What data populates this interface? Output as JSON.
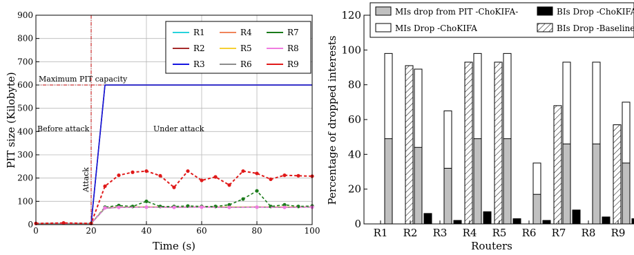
{
  "chart_data": [
    {
      "type": "line",
      "xlabel": "Time (s)",
      "ylabel": "PIT size (Kilobyte)",
      "xlim": [
        0,
        100
      ],
      "ylim": [
        0,
        900
      ],
      "x_ticks": [
        "0",
        "20",
        "40",
        "60",
        "80",
        "100"
      ],
      "y_ticks": [
        "0",
        "100",
        "200",
        "300",
        "400",
        "500",
        "600",
        "700",
        "800",
        "900"
      ],
      "legend_position": "top-right",
      "annotations": {
        "max_pit": "Maximum PIT capacity",
        "before": "Before attack",
        "under": "Under attack",
        "attack": "Attack"
      },
      "reference_lines": {
        "attack_time": 20,
        "max_pit_capacity": 600
      },
      "series": [
        {
          "name": "R1",
          "color": "#27d3dc",
          "x": [
            0,
            20,
            25,
            100
          ],
          "y": [
            5,
            5,
            600,
            600
          ]
        },
        {
          "name": "R2",
          "color": "#a52a2a",
          "x": [
            0,
            20,
            25,
            100
          ],
          "y": [
            5,
            5,
            600,
            600
          ]
        },
        {
          "name": "R3",
          "color": "#1515e0",
          "x": [
            0,
            20,
            25,
            100
          ],
          "y": [
            5,
            5,
            600,
            600
          ]
        },
        {
          "name": "R4",
          "color": "#f0845a",
          "x": [
            0,
            20,
            25,
            30,
            40,
            50,
            60,
            70,
            80,
            90,
            100
          ],
          "y": [
            5,
            5,
            72,
            75,
            76,
            75,
            76,
            75,
            76,
            75,
            76
          ]
        },
        {
          "name": "R5",
          "color": "#f5d033",
          "x": [
            0,
            20,
            25,
            30,
            40,
            50,
            60,
            70,
            80,
            90,
            100
          ],
          "y": [
            5,
            5,
            72,
            75,
            76,
            75,
            75,
            76,
            75,
            76,
            75
          ]
        },
        {
          "name": "R6",
          "color": "#8c8c8c",
          "x": [
            0,
            20,
            25,
            30,
            40,
            50,
            60,
            70,
            80,
            90,
            100
          ],
          "y": [
            5,
            5,
            70,
            74,
            75,
            74,
            75,
            74,
            75,
            74,
            75
          ]
        },
        {
          "name": "R7",
          "color": "#1a7a1a",
          "x": [
            0,
            20,
            25,
            30,
            35,
            40,
            45,
            50,
            55,
            60,
            65,
            70,
            75,
            80,
            85,
            90,
            95,
            100
          ],
          "y": [
            5,
            5,
            75,
            82,
            78,
            100,
            78,
            78,
            80,
            78,
            78,
            85,
            110,
            145,
            78,
            85,
            78,
            80
          ]
        },
        {
          "name": "R8",
          "color": "#f07be0",
          "x": [
            0,
            20,
            25,
            30,
            40,
            50,
            60,
            70,
            80,
            90,
            100
          ],
          "y": [
            5,
            5,
            72,
            74,
            75,
            74,
            75,
            74,
            75,
            74,
            75
          ]
        },
        {
          "name": "R9",
          "color": "#e01919",
          "x": [
            0,
            10,
            20,
            25,
            30,
            35,
            40,
            45,
            50,
            55,
            60,
            65,
            70,
            75,
            80,
            85,
            90,
            95,
            100
          ],
          "y": [
            5,
            7,
            5,
            165,
            212,
            225,
            230,
            210,
            160,
            230,
            190,
            205,
            170,
            230,
            220,
            195,
            212,
            210,
            208
          ]
        }
      ]
    },
    {
      "type": "bar",
      "xlabel": "Routers",
      "ylabel": "Percentage of dropped interests",
      "ylim": [
        0,
        120
      ],
      "y_ticks": [
        "0",
        "20",
        "40",
        "60",
        "80",
        "100",
        "120"
      ],
      "categories": [
        "R1",
        "R2",
        "R3",
        "R4",
        "R5",
        "R6",
        "R7",
        "R8",
        "R9"
      ],
      "legend_position": "top",
      "series": [
        {
          "name": "BIs Drop -Baseline",
          "pattern": "hatch",
          "values": [
            0,
            91,
            0,
            93,
            93,
            0,
            68,
            0,
            57
          ]
        },
        {
          "name": "MIs Drop -ChoKIFA",
          "color": "#ffffff",
          "values": [
            98,
            89,
            65,
            98,
            98,
            35,
            93,
            93,
            70
          ]
        },
        {
          "name": "MIs drop from PIT -ChoKIFA-",
          "color": "#c0c0c0",
          "values": [
            49,
            44,
            32,
            49,
            49,
            17,
            46,
            46,
            35
          ]
        },
        {
          "name": "BIs Drop -ChoKIFA",
          "color": "#000000",
          "values": [
            0,
            6,
            2,
            7,
            3,
            2,
            8,
            4,
            3
          ]
        }
      ]
    }
  ]
}
